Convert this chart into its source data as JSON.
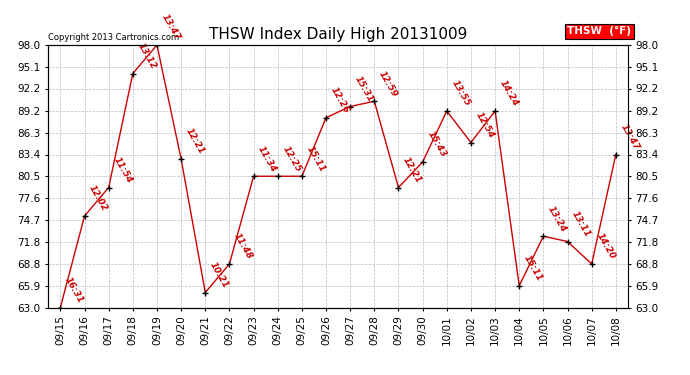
{
  "title": "THSW Index Daily High 20131009",
  "copyright": "Copyright 2013 Cartronics.com",
  "legend_label": "THSW  (°F)",
  "dates": [
    "09/15",
    "09/16",
    "09/17",
    "09/18",
    "09/19",
    "09/20",
    "09/21",
    "09/22",
    "09/23",
    "09/24",
    "09/25",
    "09/26",
    "09/27",
    "09/28",
    "09/29",
    "09/30",
    "10/01",
    "10/02",
    "10/03",
    "10/04",
    "10/05",
    "10/06",
    "10/07",
    "10/08"
  ],
  "values": [
    63.0,
    75.2,
    79.0,
    94.2,
    98.0,
    82.8,
    65.0,
    68.8,
    80.5,
    80.5,
    80.5,
    88.3,
    89.8,
    90.5,
    79.0,
    82.4,
    89.2,
    85.0,
    89.2,
    65.9,
    72.5,
    71.8,
    68.8,
    83.4
  ],
  "annotations": [
    "16:31",
    "12:02",
    "11:54",
    "13:12",
    "13:47",
    "12:21",
    "10:21",
    "11:48",
    "11:34",
    "12:25",
    "15:11",
    "12:26",
    "15:31",
    "12:59",
    "12:21",
    "15:43",
    "13:55",
    "12:54",
    "14:24",
    "15:11",
    "13:24",
    "13:11",
    "14:20",
    "13:47"
  ],
  "ylim": [
    63.0,
    98.0
  ],
  "yticks": [
    63.0,
    65.9,
    68.8,
    71.8,
    74.7,
    77.6,
    80.5,
    83.4,
    86.3,
    89.2,
    92.2,
    95.1,
    98.0
  ],
  "line_color": "#cc0000",
  "marker_color": "black",
  "background_color": "white",
  "grid_color": "#bbbbbb",
  "title_fontsize": 11,
  "annotation_fontsize": 6.5,
  "tick_fontsize": 7.5,
  "legend_bg": "red",
  "legend_text_color": "white"
}
